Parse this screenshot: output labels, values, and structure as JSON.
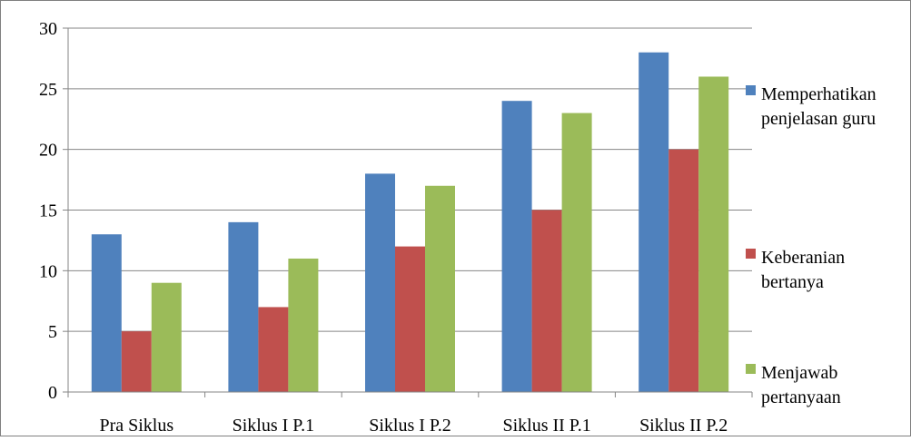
{
  "chart_data": {
    "type": "bar",
    "title": "",
    "xlabel": "",
    "ylabel": "",
    "ylim": [
      0,
      30
    ],
    "yticks": [
      0,
      5,
      10,
      15,
      20,
      25,
      30
    ],
    "grid": true,
    "legend_position": "right",
    "categories": [
      "Pra Siklus",
      "Siklus I P.1",
      "Siklus I P.2",
      "Siklus II P.1",
      "Siklus II P.2"
    ],
    "series": [
      {
        "name": "Memperhatikan penjelasan guru",
        "legend_lines": [
          "Memperhatikan",
          "penjelasan guru"
        ],
        "color": "#4F81BD",
        "values": [
          13,
          14,
          18,
          24,
          28
        ]
      },
      {
        "name": "Keberanian bertanya",
        "legend_lines": [
          "Keberanian",
          "bertanya"
        ],
        "color": "#C0504D",
        "values": [
          5,
          7,
          12,
          15,
          20
        ]
      },
      {
        "name": "Menjawab pertanyaan",
        "legend_lines": [
          "Menjawab",
          "pertanyaan"
        ],
        "color": "#9BBB59",
        "values": [
          9,
          11,
          17,
          23,
          26
        ]
      }
    ]
  }
}
